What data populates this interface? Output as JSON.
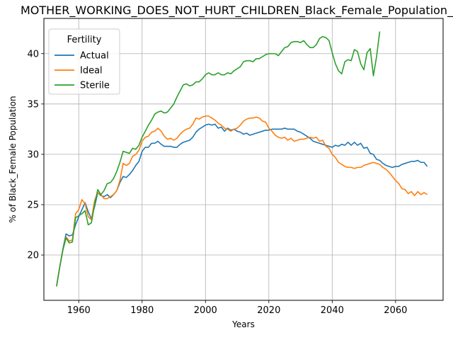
{
  "chart_data": {
    "type": "line",
    "title": "MOTHER_WORKING_DOES_NOT_HURT_CHILDREN_Black_Female_Population_Sc",
    "xlabel": "Years",
    "ylabel": "% of Black_Female Population",
    "xlim": [
      1949,
      2075
    ],
    "ylim": [
      15.5,
      43.5
    ],
    "xticks": [
      1960,
      1980,
      2000,
      2020,
      2040,
      2060
    ],
    "yticks": [
      20,
      25,
      30,
      35,
      40
    ],
    "grid": true,
    "legend": {
      "title": "Fertility",
      "placement": "top-left"
    },
    "series": [
      {
        "name": "Actual",
        "color": "#1f77b4",
        "x": [
          1953,
          1954,
          1955,
          1956,
          1957,
          1958,
          1959,
          1960,
          1961,
          1962,
          1963,
          1964,
          1965,
          1966,
          1967,
          1968,
          1969,
          1970,
          1971,
          1972,
          1973,
          1974,
          1975,
          1976,
          1977,
          1978,
          1979,
          1980,
          1981,
          1982,
          1983,
          1984,
          1985,
          1986,
          1987,
          1988,
          1989,
          1990,
          1991,
          1992,
          1993,
          1994,
          1995,
          1996,
          1997,
          1998,
          1999,
          2000,
          2001,
          2002,
          2003,
          2004,
          2005,
          2006,
          2007,
          2008,
          2009,
          2010,
          2011,
          2012,
          2013,
          2014,
          2015,
          2016,
          2017,
          2018,
          2019,
          2020,
          2021,
          2022,
          2023,
          2024,
          2025,
          2026,
          2027,
          2028,
          2029,
          2030,
          2031,
          2032,
          2033,
          2034,
          2035,
          2036,
          2037,
          2038,
          2039,
          2040,
          2041,
          2042,
          2043,
          2044,
          2045,
          2046,
          2047,
          2048,
          2049,
          2050,
          2051,
          2052,
          2053,
          2054,
          2055,
          2056,
          2057,
          2058,
          2059,
          2060,
          2061,
          2062,
          2063,
          2064,
          2065,
          2066,
          2067,
          2068,
          2069,
          2070
        ],
        "values": [
          16.9,
          18.8,
          20.6,
          22.1,
          21.9,
          22.0,
          23.0,
          23.8,
          24.5,
          25.2,
          24.3,
          23.6,
          24.8,
          26.2,
          25.9,
          25.8,
          26.0,
          25.7,
          26.0,
          26.4,
          27.2,
          27.8,
          27.7,
          28.0,
          28.4,
          28.9,
          29.3,
          30.3,
          30.7,
          30.7,
          31.1,
          31.1,
          31.3,
          31.0,
          30.8,
          30.8,
          30.8,
          30.7,
          30.7,
          31.0,
          31.2,
          31.3,
          31.4,
          31.7,
          32.2,
          32.5,
          32.7,
          32.9,
          33.0,
          32.9,
          33.0,
          32.6,
          32.7,
          32.3,
          32.6,
          32.4,
          32.5,
          32.3,
          32.2,
          32.0,
          32.1,
          31.9,
          32.0,
          32.1,
          32.2,
          32.3,
          32.4,
          32.4,
          32.5,
          32.5,
          32.5,
          32.5,
          32.6,
          32.5,
          32.5,
          32.5,
          32.3,
          32.2,
          32.0,
          31.8,
          31.6,
          31.3,
          31.2,
          31.1,
          31.0,
          30.9,
          30.8,
          30.7,
          30.9,
          30.8,
          31.0,
          30.9,
          31.2,
          30.9,
          31.2,
          30.9,
          31.1,
          30.6,
          30.7,
          30.1,
          30.0,
          29.5,
          29.4,
          29.1,
          28.9,
          28.8,
          28.7,
          28.8,
          28.8,
          29.0,
          29.1,
          29.2,
          29.3,
          29.3,
          29.4,
          29.2,
          29.2,
          28.8
        ]
      },
      {
        "name": "Ideal",
        "color": "#ff7f0e",
        "x": [
          1953,
          1954,
          1955,
          1956,
          1957,
          1958,
          1959,
          1960,
          1961,
          1962,
          1963,
          1964,
          1965,
          1966,
          1967,
          1968,
          1969,
          1970,
          1971,
          1972,
          1973,
          1974,
          1975,
          1976,
          1977,
          1978,
          1979,
          1980,
          1981,
          1982,
          1983,
          1984,
          1985,
          1986,
          1987,
          1988,
          1989,
          1990,
          1991,
          1992,
          1993,
          1994,
          1995,
          1996,
          1997,
          1998,
          1999,
          2000,
          2001,
          2002,
          2003,
          2004,
          2005,
          2006,
          2007,
          2008,
          2009,
          2010,
          2011,
          2012,
          2013,
          2014,
          2015,
          2016,
          2017,
          2018,
          2019,
          2020,
          2021,
          2022,
          2023,
          2024,
          2025,
          2026,
          2027,
          2028,
          2029,
          2030,
          2031,
          2032,
          2033,
          2034,
          2035,
          2036,
          2037,
          2038,
          2039,
          2040,
          2041,
          2042,
          2043,
          2044,
          2045,
          2046,
          2047,
          2048,
          2049,
          2050,
          2051,
          2052,
          2053,
          2054,
          2055,
          2056,
          2057,
          2058,
          2059,
          2060,
          2061,
          2062,
          2063,
          2064,
          2065,
          2066,
          2067,
          2068,
          2069,
          2070
        ],
        "values": [
          16.9,
          18.8,
          20.5,
          21.8,
          21.4,
          21.5,
          24.1,
          24.5,
          25.5,
          25.1,
          23.8,
          23.5,
          25.4,
          26.2,
          26.0,
          25.6,
          25.6,
          25.8,
          26.0,
          26.4,
          27.4,
          29.1,
          28.9,
          29.1,
          29.8,
          30.0,
          30.4,
          31.3,
          31.7,
          31.8,
          32.2,
          32.3,
          32.6,
          32.3,
          31.8,
          31.5,
          31.6,
          31.4,
          31.6,
          32.0,
          32.3,
          32.5,
          32.6,
          33.0,
          33.6,
          33.5,
          33.7,
          33.8,
          33.8,
          33.6,
          33.4,
          33.1,
          32.9,
          32.6,
          32.5,
          32.3,
          32.5,
          32.6,
          32.9,
          33.3,
          33.5,
          33.6,
          33.6,
          33.7,
          33.6,
          33.3,
          33.2,
          32.6,
          32.3,
          31.9,
          31.7,
          31.6,
          31.7,
          31.4,
          31.6,
          31.3,
          31.4,
          31.5,
          31.5,
          31.6,
          31.7,
          31.6,
          31.7,
          31.3,
          31.4,
          30.8,
          30.6,
          30.0,
          29.7,
          29.2,
          29.0,
          28.8,
          28.7,
          28.7,
          28.6,
          28.7,
          28.7,
          28.9,
          29.0,
          29.1,
          29.2,
          29.1,
          29.0,
          28.7,
          28.5,
          28.2,
          27.8,
          27.4,
          27.1,
          26.6,
          26.5,
          26.1,
          26.3,
          25.9,
          26.3,
          26.0,
          26.2,
          26.0
        ]
      },
      {
        "name": "Sterile",
        "color": "#2ca02c",
        "x": [
          1953,
          1954,
          1955,
          1956,
          1957,
          1958,
          1959,
          1960,
          1961,
          1962,
          1963,
          1964,
          1965,
          1966,
          1967,
          1968,
          1969,
          1970,
          1971,
          1972,
          1973,
          1974,
          1975,
          1976,
          1977,
          1978,
          1979,
          1980,
          1981,
          1982,
          1983,
          1984,
          1985,
          1986,
          1987,
          1988,
          1989,
          1990,
          1991,
          1992,
          1993,
          1994,
          1995,
          1996,
          1997,
          1998,
          1999,
          2000,
          2001,
          2002,
          2003,
          2004,
          2005,
          2006,
          2007,
          2008,
          2009,
          2010,
          2011,
          2012,
          2013,
          2014,
          2015,
          2016,
          2017,
          2018,
          2019,
          2020,
          2021,
          2022,
          2023,
          2024,
          2025,
          2026,
          2027,
          2028,
          2029,
          2030,
          2031,
          2032,
          2033,
          2034,
          2035,
          2036,
          2037,
          2038,
          2039,
          2040,
          2041,
          2042,
          2043,
          2044,
          2045,
          2046,
          2047,
          2048,
          2049,
          2050,
          2051,
          2052,
          2053,
          2054,
          2055
        ],
        "values": [
          16.9,
          18.8,
          20.5,
          21.7,
          21.2,
          21.3,
          23.7,
          23.9,
          24.1,
          24.4,
          23.0,
          23.2,
          25.0,
          26.5,
          26.0,
          26.4,
          27.1,
          27.2,
          27.6,
          28.3,
          29.2,
          30.3,
          30.2,
          30.1,
          30.6,
          30.5,
          30.9,
          31.7,
          32.3,
          32.9,
          33.4,
          34.0,
          34.2,
          34.3,
          34.1,
          34.2,
          34.6,
          35.0,
          35.7,
          36.3,
          36.9,
          37.0,
          36.8,
          36.9,
          37.2,
          37.2,
          37.5,
          37.9,
          38.1,
          37.9,
          37.9,
          38.1,
          37.9,
          37.9,
          38.1,
          38.0,
          38.3,
          38.5,
          38.7,
          39.2,
          39.3,
          39.3,
          39.2,
          39.5,
          39.5,
          39.7,
          39.9,
          40.0,
          40.0,
          40.0,
          39.8,
          40.2,
          40.6,
          40.7,
          41.1,
          41.2,
          41.2,
          41.1,
          41.3,
          40.9,
          40.6,
          40.6,
          40.9,
          41.5,
          41.7,
          41.6,
          41.3,
          40.1,
          39.0,
          38.3,
          38.0,
          39.2,
          39.4,
          39.3,
          40.4,
          40.2,
          39.0,
          38.4,
          40.1,
          40.5,
          37.8,
          39.7,
          42.2
        ]
      }
    ]
  }
}
